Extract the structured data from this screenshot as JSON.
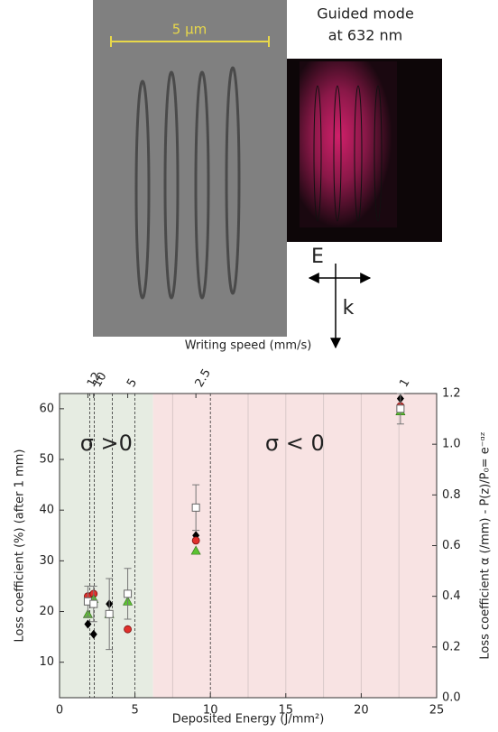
{
  "figure": {
    "scale_bar": "5 μm",
    "mode_title": [
      "Guided mode",
      "at 632 nm"
    ],
    "e_label": "E",
    "k_label": "k"
  },
  "chart_data": {
    "type": "scatter",
    "x_label": "Deposited Energy (J/mm²)",
    "x2_label": "Writing speed (mm/s)",
    "y_label": "Loss coefficient (%) (after 1 mm)",
    "y2_label": "Loss coefficient α (/mm)  - P(z)/P₀= e⁻ᵅᶻ",
    "xlim": [
      0,
      25
    ],
    "xticks": [
      0,
      5,
      10,
      15,
      20,
      25
    ],
    "x2ticks": [
      {
        "value": 1.88,
        "label": "12"
      },
      {
        "value": 2.26,
        "label": "10"
      },
      {
        "value": 4.52,
        "label": "5"
      },
      {
        "value": 9.04,
        "label": "2.5"
      },
      {
        "value": 22.6,
        "label": "1"
      }
    ],
    "ylim": [
      3,
      63
    ],
    "yticks": [
      10,
      20,
      30,
      40,
      50,
      60
    ],
    "y2lim": [
      0,
      1.2
    ],
    "y2ticks": [
      {
        "value": 0,
        "label": "0.0"
      },
      0.2,
      0.4,
      0.6,
      0.8,
      {
        "value": 1,
        "label": "1.0"
      },
      1.2
    ],
    "regions": [
      {
        "xlim": [
          0,
          6.2
        ],
        "color": "#e6ece2",
        "label": "σ >0"
      },
      {
        "xlim": [
          6.2,
          25
        ],
        "color": "#f8e3e3",
        "label": "σ < 0"
      }
    ],
    "dashed_lines": [
      2,
      2.3,
      3.5,
      5,
      10
    ],
    "minor_grid": [
      7.5,
      12.5,
      15,
      17.5,
      20,
      22.5
    ],
    "x": [
      1.88,
      2.26,
      3.3,
      4.52,
      9.04,
      22.6
    ],
    "series": [
      {
        "marker": "diamond",
        "color": "#000000",
        "values": [
          17.5,
          15.5,
          21.5,
          null,
          35,
          62
        ]
      },
      {
        "marker": "circle",
        "color": "#e0302c",
        "values": [
          23,
          23.5,
          null,
          16.5,
          34,
          60.5
        ]
      },
      {
        "marker": "triangle",
        "color": "#5cc232",
        "values": [
          19.5,
          22.5,
          19.5,
          22,
          32,
          59.5
        ]
      },
      {
        "marker": "square",
        "color": "#666666",
        "values": [
          22,
          21.5,
          19.5,
          23.5,
          40.5,
          60
        ],
        "errors": [
          3,
          3.5,
          7,
          5,
          4.5,
          3
        ]
      }
    ]
  }
}
